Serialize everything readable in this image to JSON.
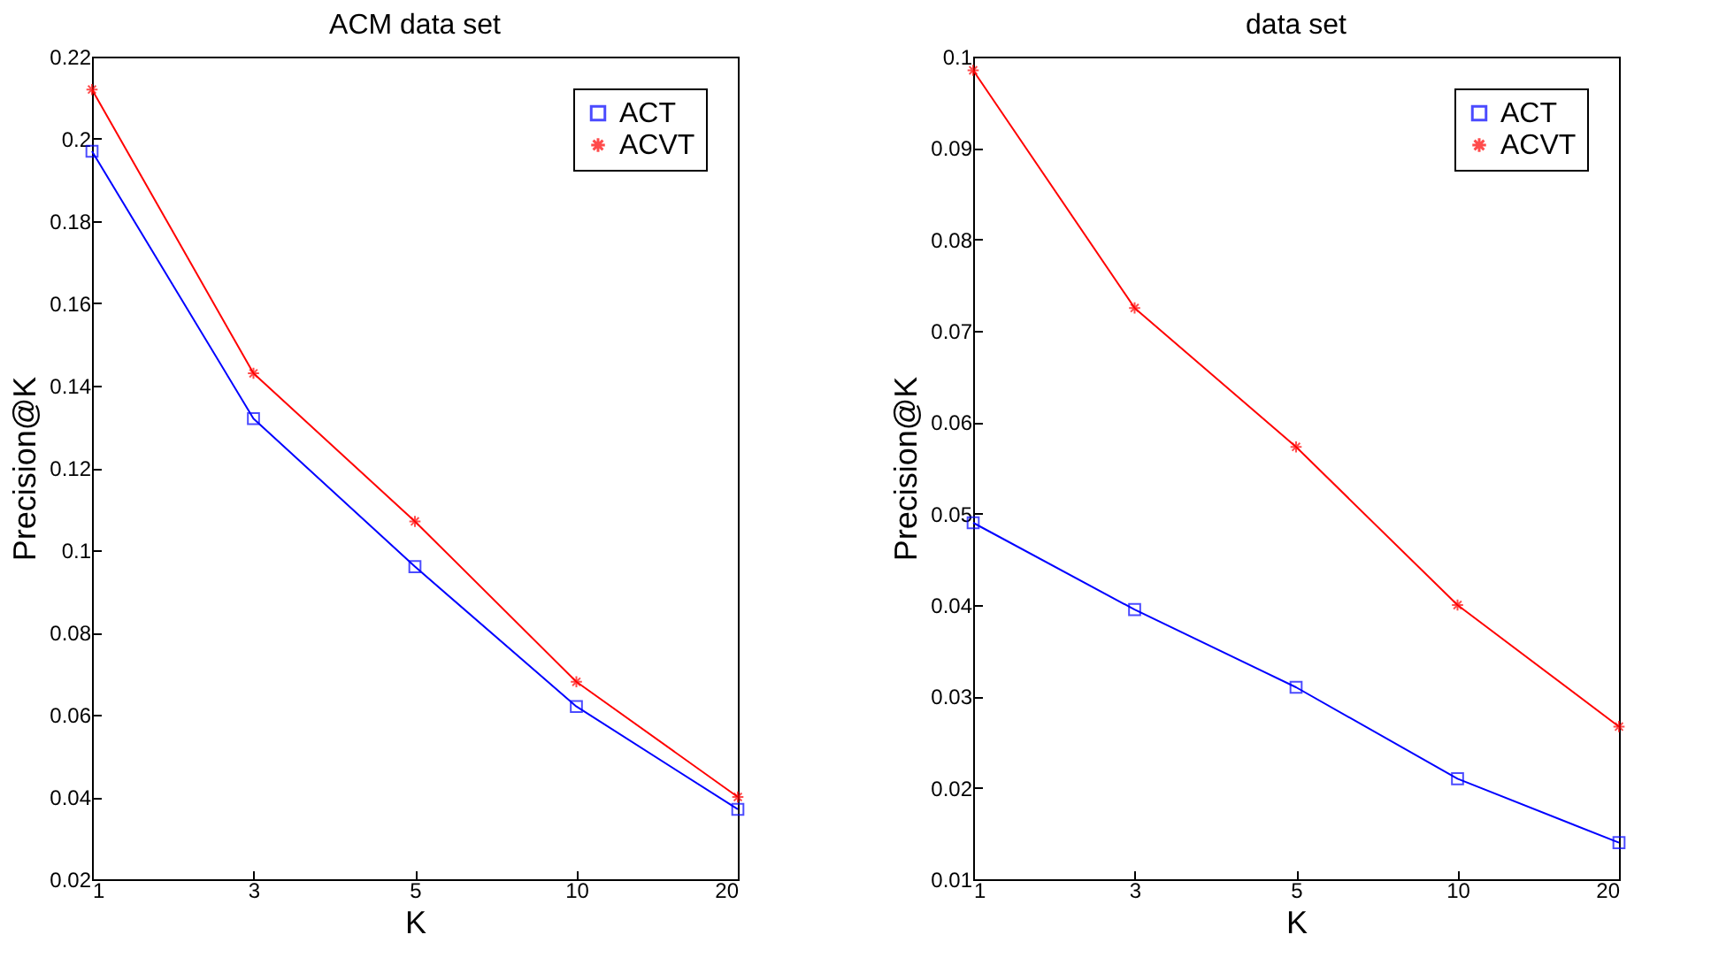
{
  "chart_data": [
    {
      "type": "line",
      "title": "ACM data set",
      "xlabel": "K",
      "ylabel": "Precision@K",
      "categories": [
        "1",
        "3",
        "5",
        "10",
        "20"
      ],
      "ylim": [
        0.02,
        0.22
      ],
      "yticks": [
        0.02,
        0.04,
        0.06,
        0.08,
        0.1,
        0.12,
        0.14,
        0.16,
        0.18,
        0.2,
        0.22
      ],
      "legend": "top right",
      "grid": false,
      "series": [
        {
          "name": "ACT",
          "color": "#0000ff",
          "marker": "square",
          "values": [
            0.197,
            0.132,
            0.096,
            0.062,
            0.037
          ]
        },
        {
          "name": "ACVT",
          "color": "#ff0000",
          "marker": "cross",
          "values": [
            0.212,
            0.143,
            0.107,
            0.068,
            0.04
          ]
        }
      ]
    },
    {
      "type": "line",
      "title": "data set",
      "xlabel": "K",
      "ylabel": "Precision@K",
      "categories": [
        "1",
        "3",
        "5",
        "10",
        "20"
      ],
      "ylim": [
        0.01,
        0.1
      ],
      "yticks": [
        0.01,
        0.02,
        0.03,
        0.04,
        0.05,
        0.06,
        0.07,
        0.08,
        0.09,
        0.1
      ],
      "legend": "top right",
      "grid": false,
      "series": [
        {
          "name": "ACT",
          "color": "#0000ff",
          "marker": "square",
          "values": [
            0.049,
            0.0395,
            0.031,
            0.021,
            0.014
          ]
        },
        {
          "name": "ACVT",
          "color": "#ff0000",
          "marker": "cross",
          "values": [
            0.0985,
            0.0725,
            0.0573,
            0.04,
            0.0267
          ]
        }
      ]
    }
  ]
}
